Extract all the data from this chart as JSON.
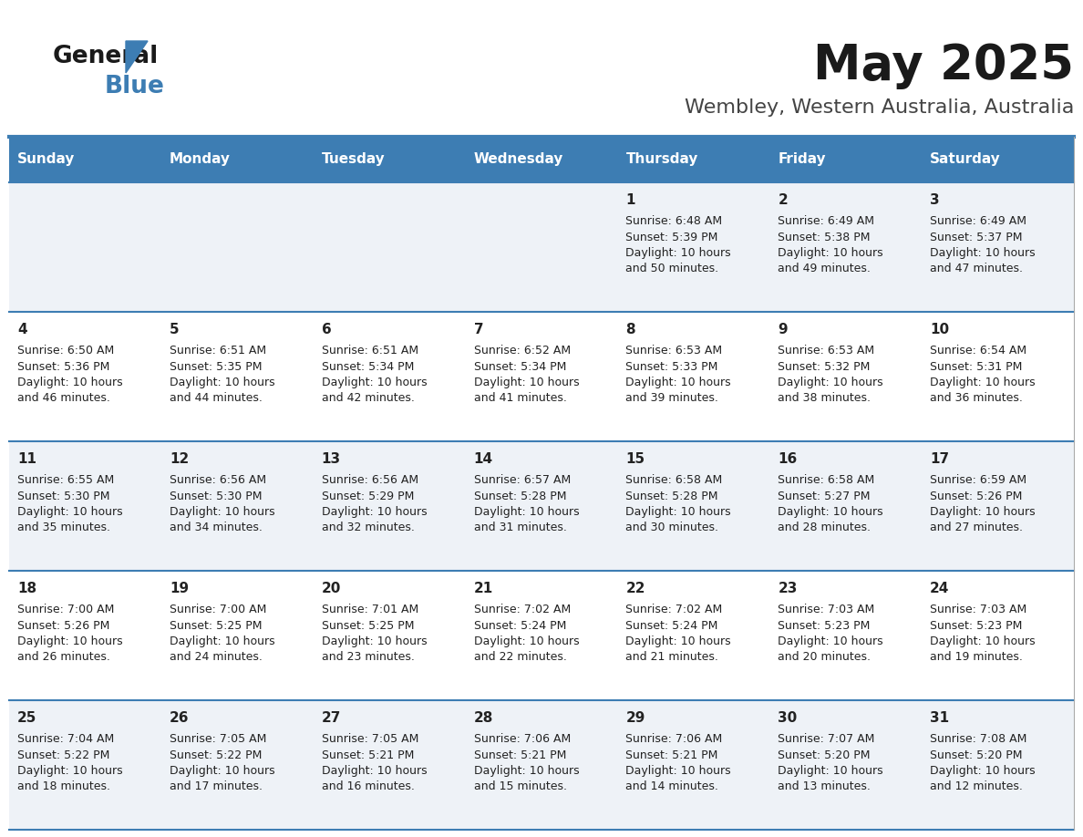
{
  "title": "May 2025",
  "subtitle": "Wembley, Western Australia, Australia",
  "days_of_week": [
    "Sunday",
    "Monday",
    "Tuesday",
    "Wednesday",
    "Thursday",
    "Friday",
    "Saturday"
  ],
  "header_bg": "#3d7db3",
  "header_text": "#ffffff",
  "row_bg_odd": "#eef2f7",
  "row_bg_even": "#ffffff",
  "cell_text": "#222222",
  "border_color": "#3d7db3",
  "title_color": "#1a1a1a",
  "subtitle_color": "#444444",
  "weeks": [
    [
      {
        "day": "",
        "sunrise": "",
        "sunset": "",
        "daylight": ""
      },
      {
        "day": "",
        "sunrise": "",
        "sunset": "",
        "daylight": ""
      },
      {
        "day": "",
        "sunrise": "",
        "sunset": "",
        "daylight": ""
      },
      {
        "day": "",
        "sunrise": "",
        "sunset": "",
        "daylight": ""
      },
      {
        "day": "1",
        "sunrise": "6:48 AM",
        "sunset": "5:39 PM",
        "daylight": "10 hours and 50 minutes."
      },
      {
        "day": "2",
        "sunrise": "6:49 AM",
        "sunset": "5:38 PM",
        "daylight": "10 hours and 49 minutes."
      },
      {
        "day": "3",
        "sunrise": "6:49 AM",
        "sunset": "5:37 PM",
        "daylight": "10 hours and 47 minutes."
      }
    ],
    [
      {
        "day": "4",
        "sunrise": "6:50 AM",
        "sunset": "5:36 PM",
        "daylight": "10 hours and 46 minutes."
      },
      {
        "day": "5",
        "sunrise": "6:51 AM",
        "sunset": "5:35 PM",
        "daylight": "10 hours and 44 minutes."
      },
      {
        "day": "6",
        "sunrise": "6:51 AM",
        "sunset": "5:34 PM",
        "daylight": "10 hours and 42 minutes."
      },
      {
        "day": "7",
        "sunrise": "6:52 AM",
        "sunset": "5:34 PM",
        "daylight": "10 hours and 41 minutes."
      },
      {
        "day": "8",
        "sunrise": "6:53 AM",
        "sunset": "5:33 PM",
        "daylight": "10 hours and 39 minutes."
      },
      {
        "day": "9",
        "sunrise": "6:53 AM",
        "sunset": "5:32 PM",
        "daylight": "10 hours and 38 minutes."
      },
      {
        "day": "10",
        "sunrise": "6:54 AM",
        "sunset": "5:31 PM",
        "daylight": "10 hours and 36 minutes."
      }
    ],
    [
      {
        "day": "11",
        "sunrise": "6:55 AM",
        "sunset": "5:30 PM",
        "daylight": "10 hours and 35 minutes."
      },
      {
        "day": "12",
        "sunrise": "6:56 AM",
        "sunset": "5:30 PM",
        "daylight": "10 hours and 34 minutes."
      },
      {
        "day": "13",
        "sunrise": "6:56 AM",
        "sunset": "5:29 PM",
        "daylight": "10 hours and 32 minutes."
      },
      {
        "day": "14",
        "sunrise": "6:57 AM",
        "sunset": "5:28 PM",
        "daylight": "10 hours and 31 minutes."
      },
      {
        "day": "15",
        "sunrise": "6:58 AM",
        "sunset": "5:28 PM",
        "daylight": "10 hours and 30 minutes."
      },
      {
        "day": "16",
        "sunrise": "6:58 AM",
        "sunset": "5:27 PM",
        "daylight": "10 hours and 28 minutes."
      },
      {
        "day": "17",
        "sunrise": "6:59 AM",
        "sunset": "5:26 PM",
        "daylight": "10 hours and 27 minutes."
      }
    ],
    [
      {
        "day": "18",
        "sunrise": "7:00 AM",
        "sunset": "5:26 PM",
        "daylight": "10 hours and 26 minutes."
      },
      {
        "day": "19",
        "sunrise": "7:00 AM",
        "sunset": "5:25 PM",
        "daylight": "10 hours and 24 minutes."
      },
      {
        "day": "20",
        "sunrise": "7:01 AM",
        "sunset": "5:25 PM",
        "daylight": "10 hours and 23 minutes."
      },
      {
        "day": "21",
        "sunrise": "7:02 AM",
        "sunset": "5:24 PM",
        "daylight": "10 hours and 22 minutes."
      },
      {
        "day": "22",
        "sunrise": "7:02 AM",
        "sunset": "5:24 PM",
        "daylight": "10 hours and 21 minutes."
      },
      {
        "day": "23",
        "sunrise": "7:03 AM",
        "sunset": "5:23 PM",
        "daylight": "10 hours and 20 minutes."
      },
      {
        "day": "24",
        "sunrise": "7:03 AM",
        "sunset": "5:23 PM",
        "daylight": "10 hours and 19 minutes."
      }
    ],
    [
      {
        "day": "25",
        "sunrise": "7:04 AM",
        "sunset": "5:22 PM",
        "daylight": "10 hours and 18 minutes."
      },
      {
        "day": "26",
        "sunrise": "7:05 AM",
        "sunset": "5:22 PM",
        "daylight": "10 hours and 17 minutes."
      },
      {
        "day": "27",
        "sunrise": "7:05 AM",
        "sunset": "5:21 PM",
        "daylight": "10 hours and 16 minutes."
      },
      {
        "day": "28",
        "sunrise": "7:06 AM",
        "sunset": "5:21 PM",
        "daylight": "10 hours and 15 minutes."
      },
      {
        "day": "29",
        "sunrise": "7:06 AM",
        "sunset": "5:21 PM",
        "daylight": "10 hours and 14 minutes."
      },
      {
        "day": "30",
        "sunrise": "7:07 AM",
        "sunset": "5:20 PM",
        "daylight": "10 hours and 13 minutes."
      },
      {
        "day": "31",
        "sunrise": "7:08 AM",
        "sunset": "5:20 PM",
        "daylight": "10 hours and 12 minutes."
      }
    ]
  ]
}
